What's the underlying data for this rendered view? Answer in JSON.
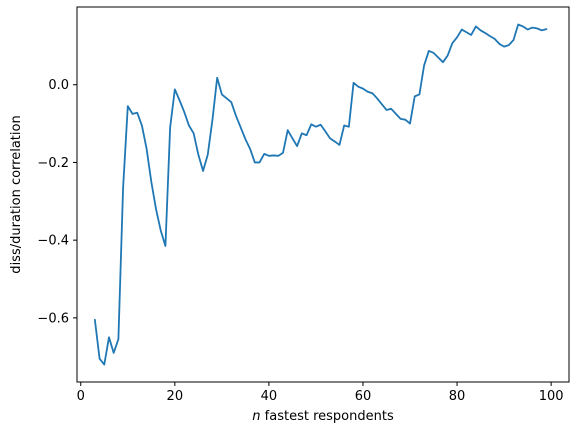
{
  "chart_data": {
    "type": "line",
    "xlabel_italic": "n",
    "xlabel_rest": " fastest respondents",
    "ylabel": "diss/duration correlation",
    "xlim": [
      -0.8,
      103.8
    ],
    "ylim": [
      -0.765,
      0.2
    ],
    "xticks": [
      0,
      20,
      40,
      60,
      80,
      100
    ],
    "xtick_labels": [
      "0",
      "20",
      "40",
      "60",
      "80",
      "100"
    ],
    "yticks": [
      -0.6,
      -0.4,
      -0.2,
      0.0
    ],
    "ytick_labels": [
      "−0.6",
      "−0.4",
      "−0.2",
      "0.0"
    ],
    "grid": false,
    "line_color": "#1f77b4",
    "series": [
      {
        "x": [
          3,
          4,
          5,
          6,
          7,
          8,
          9,
          10,
          11,
          12,
          13,
          14,
          15,
          16,
          17,
          18,
          19,
          20,
          21,
          22,
          23,
          24,
          25,
          26,
          27,
          28,
          29,
          30,
          31,
          32,
          33,
          34,
          35,
          36,
          37,
          38,
          39,
          40,
          41,
          42,
          43,
          44,
          45,
          46,
          47,
          48,
          49,
          50,
          51,
          52,
          53,
          54,
          55,
          56,
          57,
          58,
          59,
          60,
          61,
          62,
          63,
          64,
          65,
          66,
          67,
          68,
          69,
          70,
          71,
          72,
          73,
          74,
          75,
          76,
          77,
          78,
          79,
          80,
          81,
          82,
          83,
          84,
          85,
          86,
          87,
          88,
          89,
          90,
          91,
          92,
          93,
          94,
          95,
          96,
          97,
          98,
          99
        ],
        "values": [
          -0.605,
          -0.705,
          -0.72,
          -0.65,
          -0.69,
          -0.655,
          -0.265,
          -0.055,
          -0.075,
          -0.072,
          -0.105,
          -0.165,
          -0.25,
          -0.32,
          -0.375,
          -0.415,
          -0.11,
          -0.012,
          -0.04,
          -0.07,
          -0.105,
          -0.125,
          -0.18,
          -0.222,
          -0.18,
          -0.09,
          0.018,
          -0.025,
          -0.035,
          -0.045,
          -0.08,
          -0.11,
          -0.14,
          -0.165,
          -0.2,
          -0.2,
          -0.178,
          -0.183,
          -0.182,
          -0.183,
          -0.175,
          -0.117,
          -0.138,
          -0.158,
          -0.125,
          -0.13,
          -0.102,
          -0.108,
          -0.103,
          -0.12,
          -0.138,
          -0.146,
          -0.155,
          -0.105,
          -0.108,
          0.005,
          -0.005,
          -0.01,
          -0.018,
          -0.022,
          -0.035,
          -0.05,
          -0.065,
          -0.062,
          -0.075,
          -0.088,
          -0.09,
          -0.1,
          -0.03,
          -0.025,
          0.05,
          0.087,
          0.082,
          0.07,
          0.058,
          0.075,
          0.107,
          0.122,
          0.142,
          0.135,
          0.128,
          0.15,
          0.14,
          0.133,
          0.125,
          0.118,
          0.105,
          0.098,
          0.102,
          0.115,
          0.155,
          0.15,
          0.142,
          0.147,
          0.145,
          0.14,
          0.143
        ]
      }
    ]
  }
}
